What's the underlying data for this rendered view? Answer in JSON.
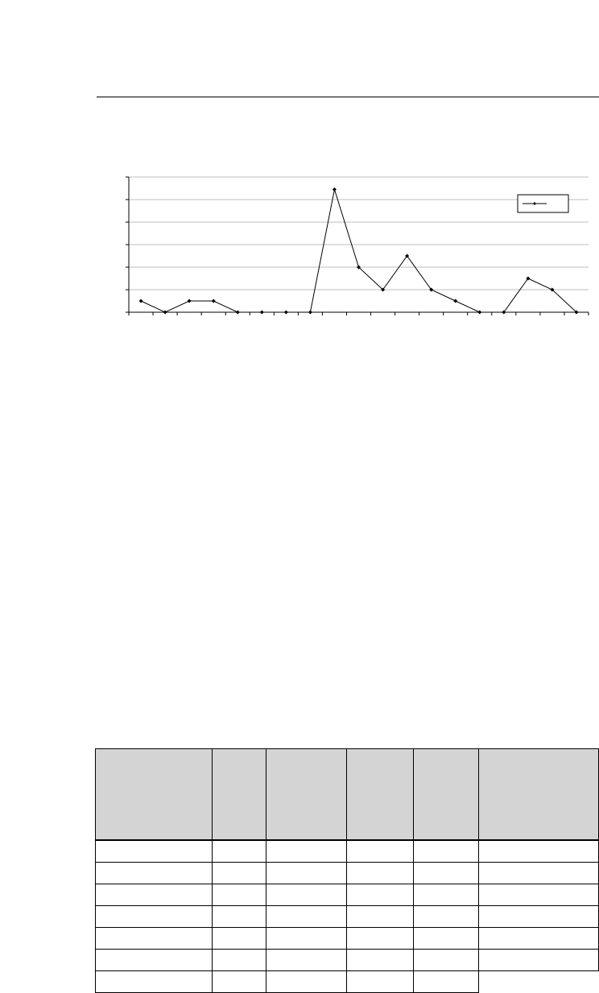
{
  "chart_data": {
    "type": "line",
    "title": "",
    "xlabel": "",
    "ylabel": "",
    "ylim": [
      0,
      6
    ],
    "y_ticks": [
      0,
      1,
      2,
      3,
      4,
      5,
      6
    ],
    "grid": true,
    "legend_position": "top-right",
    "series": [
      {
        "color": "#000000",
        "marker": "diamond",
        "values": [
          0.5,
          0,
          0.5,
          0.5,
          0,
          0,
          0,
          0,
          5.45,
          2,
          1,
          2.5,
          1,
          0.5,
          0,
          0,
          1.5,
          1,
          0
        ]
      }
    ],
    "x": [
      1,
      2,
      3,
      4,
      5,
      6,
      7,
      8,
      9,
      10,
      11,
      12,
      13,
      14,
      15,
      16,
      17,
      18,
      19
    ]
  },
  "table": {
    "columns": [
      "",
      "",
      "",
      "",
      "",
      ""
    ],
    "rows": [
      [
        "",
        "",
        "",
        "",
        "",
        ""
      ],
      [
        "",
        "",
        "",
        "",
        "",
        ""
      ],
      [
        "",
        "",
        "",
        "",
        "",
        ""
      ],
      [
        "",
        "",
        "",
        "",
        "",
        ""
      ],
      [
        "",
        "",
        "",
        "",
        "",
        ""
      ],
      [
        "",
        "",
        "",
        "",
        "",
        ""
      ],
      [
        "",
        "",
        "",
        "",
        ""
      ]
    ]
  }
}
